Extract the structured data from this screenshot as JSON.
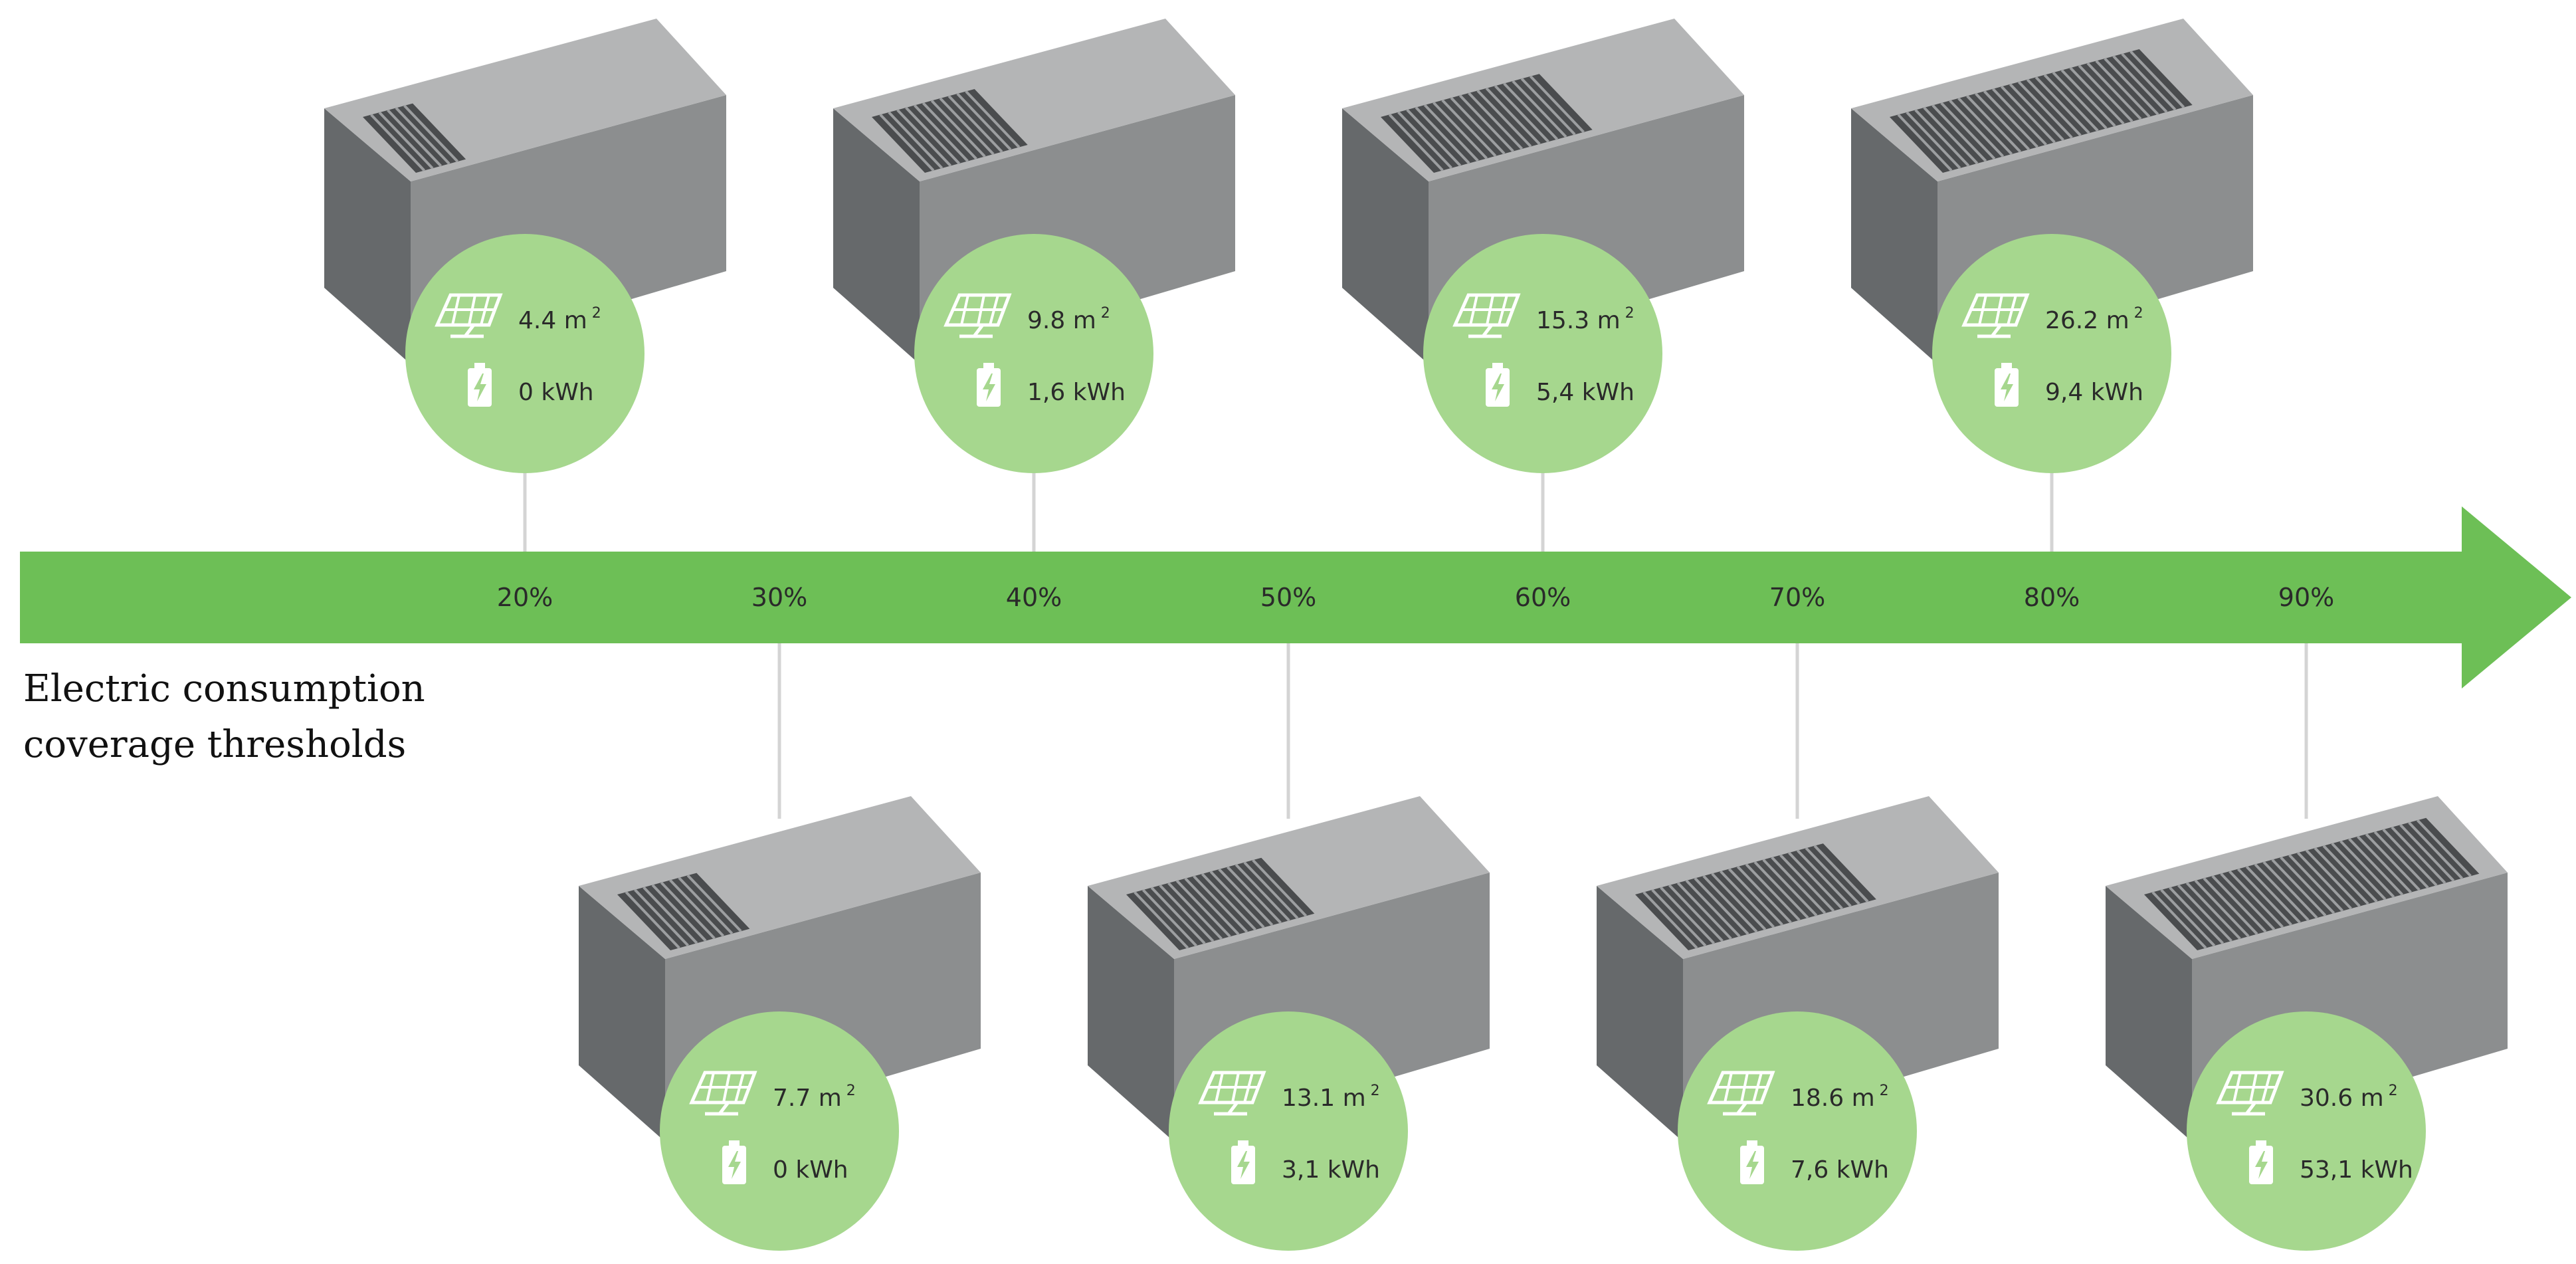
{
  "caption": {
    "line1": "Electric consumption",
    "line2": "coverage thresholds"
  },
  "thresholds": [
    "20%",
    "30%",
    "40%",
    "50%",
    "60%",
    "70%",
    "80%",
    "90%"
  ],
  "scenarios": [
    {
      "threshold": "20%",
      "position": "top",
      "panel_area": "4.4 m",
      "battery": "0 kWh",
      "panel_fill": 0.17
    },
    {
      "threshold": "30%",
      "position": "bottom",
      "panel_area": "7.7 m",
      "battery": "0 kWh",
      "panel_fill": 0.27
    },
    {
      "threshold": "40%",
      "position": "top",
      "panel_area": "9.8 m",
      "battery": "1,6 kWh",
      "panel_fill": 0.35
    },
    {
      "threshold": "50%",
      "position": "bottom",
      "panel_area": "13.1 m",
      "battery": "3,1 kWh",
      "panel_fill": 0.46
    },
    {
      "threshold": "60%",
      "position": "top",
      "panel_area": "15.3 m",
      "battery": "5,4 kWh",
      "panel_fill": 0.54
    },
    {
      "threshold": "70%",
      "position": "bottom",
      "panel_area": "18.6 m",
      "battery": "7,6 kWh",
      "panel_fill": 0.64
    },
    {
      "threshold": "80%",
      "position": "top",
      "panel_area": "26.2 m",
      "battery": "9,4 kWh",
      "panel_fill": 0.85
    },
    {
      "threshold": "90%",
      "position": "bottom",
      "panel_area": "30.6 m",
      "battery": "53,1 kWh",
      "panel_fill": 0.96
    }
  ],
  "area_superscript": "2",
  "colors": {
    "arrow": "#6dbf56",
    "bubble": "#a6d78e",
    "roof_light": "#b4b5b6",
    "front": "#8c8e8f",
    "side_dark": "#66696b",
    "panel": "#4a4c4e",
    "panel_line": "#9c9ea0",
    "connector": "#d4d4d4",
    "label_text": "#2a2a2a",
    "icon": "#ffffff"
  }
}
